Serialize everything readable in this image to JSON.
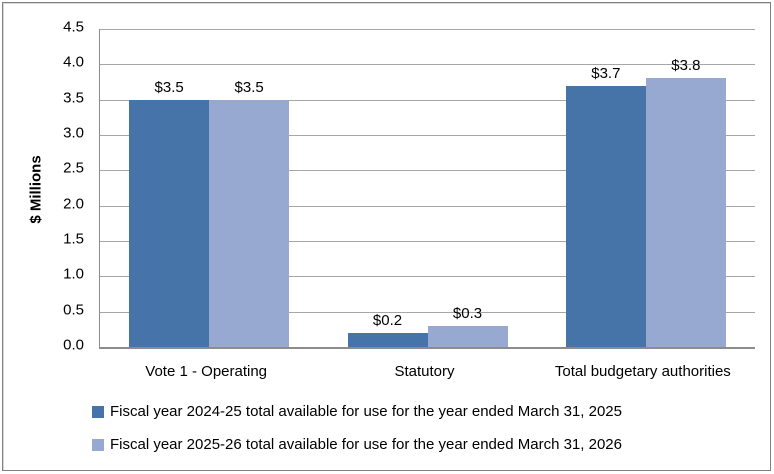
{
  "chart_data": {
    "type": "bar",
    "title": "",
    "xlabel": "",
    "ylabel": "$ Millions",
    "ylim": [
      0,
      4.5
    ],
    "ytick_step": 0.5,
    "grid": true,
    "legend_position": "bottom",
    "categories": [
      "Vote 1 - Operating",
      "Statutory",
      "Total budgetary authorities"
    ],
    "series": [
      {
        "name": "Fiscal year 2024-25 total available for use for the year ended March 31, 2025",
        "values": [
          3.5,
          0.2,
          3.7
        ],
        "data_labels": [
          "$3.5",
          "$0.2",
          "$3.7"
        ],
        "color": "#4674A8"
      },
      {
        "name": "Fiscal year 2025-26 total available for use for the year ended March 31, 2026",
        "values": [
          3.5,
          0.3,
          3.8
        ],
        "data_labels": [
          "$3.5",
          "$0.3",
          "$3.8"
        ],
        "color": "#97A9D0"
      }
    ],
    "ytick_labels": [
      "0.0",
      "0.5",
      "1.0",
      "1.5",
      "2.0",
      "2.5",
      "3.0",
      "3.5",
      "4.0",
      "4.5"
    ]
  },
  "colors": {
    "gridline": "#A6A6A6",
    "axis_line": "#8C8C8C",
    "text": "#000000",
    "frame_border": "#808080",
    "background": "#FFFFFF"
  }
}
